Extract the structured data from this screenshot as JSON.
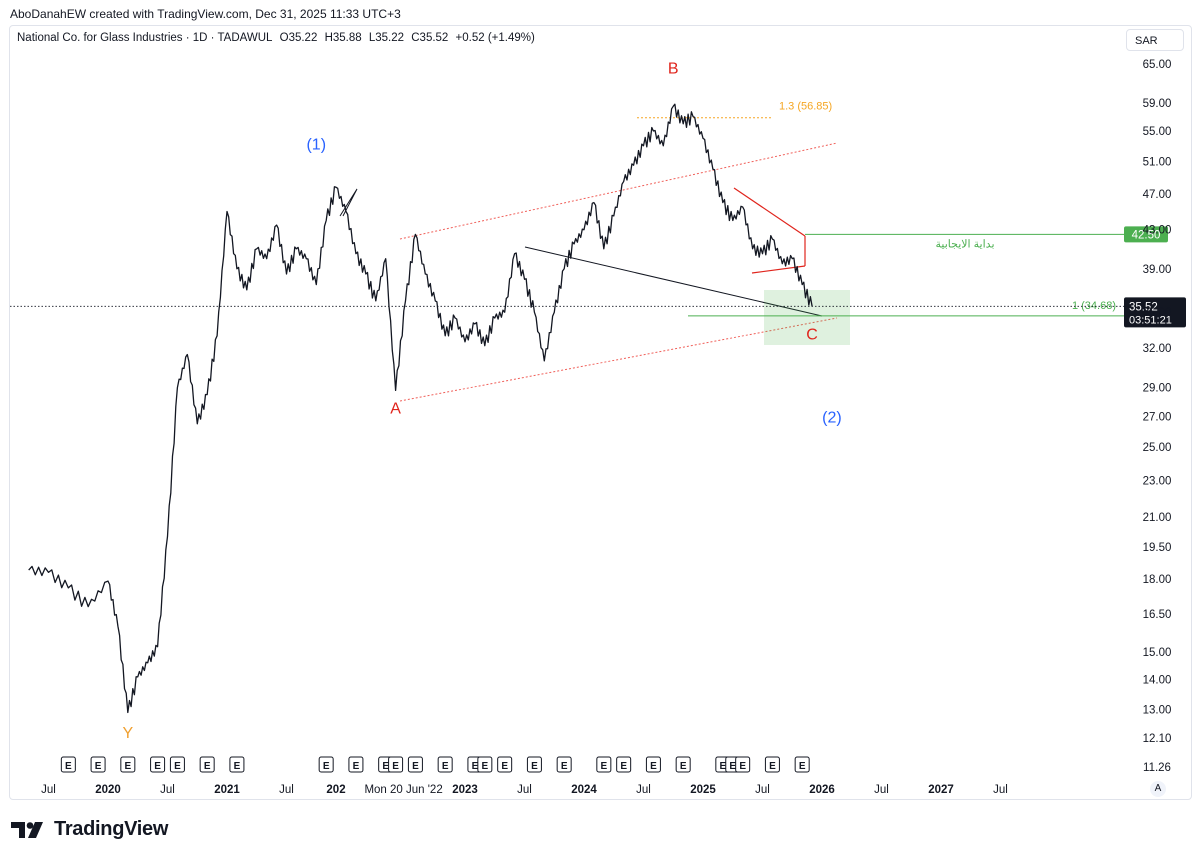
{
  "header": {
    "credit": "AboDanahEW created with TradingView.com, Dec 31, 2025 11:33 UTC+3"
  },
  "legend": {
    "symbol": "National Co. for Glass Industries · 1D · TADAWUL",
    "open": "O35.22",
    "high": "H35.88",
    "low": "L35.22",
    "close": "C35.52",
    "change": "+0.52 (+1.49%)"
  },
  "currency": "SAR",
  "brand": {
    "name": "TradingView"
  },
  "chart_data": {
    "type": "line",
    "scale": "log",
    "ylim": [
      11.0,
      68.0
    ],
    "y_ticks": [
      "65.00",
      "59.00",
      "55.00",
      "51.00",
      "47.00",
      "43.00",
      "39.00",
      "35.00",
      "32.00",
      "29.00",
      "27.00",
      "25.00",
      "23.00",
      "21.00",
      "19.50",
      "18.00",
      "16.50",
      "15.00",
      "14.00",
      "13.00",
      "12.10",
      "11.26"
    ],
    "x_ticks": [
      {
        "label": "Jul",
        "bold": false
      },
      {
        "label": "2020",
        "bold": true
      },
      {
        "label": "Jul",
        "bold": false
      },
      {
        "label": "2021",
        "bold": true
      },
      {
        "label": "Jul",
        "bold": false
      },
      {
        "label": "202",
        "bold": true
      },
      {
        "label": "Mon 20 Jun '22",
        "bold": false
      },
      {
        "label": "2023",
        "bold": true
      },
      {
        "label": "Jul",
        "bold": false
      },
      {
        "label": "2024",
        "bold": true
      },
      {
        "label": "Jul",
        "bold": false
      },
      {
        "label": "2025",
        "bold": true
      },
      {
        "label": "Jul",
        "bold": false
      },
      {
        "label": "2026",
        "bold": true
      },
      {
        "label": "Jul",
        "bold": false
      },
      {
        "label": "2027",
        "bold": true
      },
      {
        "label": "Jul",
        "bold": false
      }
    ],
    "price_path": [
      [
        "2019-05",
        18.4
      ],
      [
        "2019-07",
        18.3
      ],
      [
        "2019-09",
        17.6
      ],
      [
        "2019-11",
        16.8
      ],
      [
        "2020-01",
        17.9
      ],
      [
        "2020-02",
        16.0
      ],
      [
        "2020-03",
        12.9
      ],
      [
        "2020-04",
        14.1
      ],
      [
        "2020-05",
        14.6
      ],
      [
        "2020-06",
        15.2
      ],
      [
        "2020-07",
        20.0
      ],
      [
        "2020-08",
        29.0
      ],
      [
        "2020-09",
        31.5
      ],
      [
        "2020-10",
        26.5
      ],
      [
        "2020-11",
        28.5
      ],
      [
        "2020-12",
        33.0
      ],
      [
        "2021-01",
        45.0
      ],
      [
        "2021-02",
        39.0
      ],
      [
        "2021-03",
        37.0
      ],
      [
        "2021-04",
        41.0
      ],
      [
        "2021-05",
        40.0
      ],
      [
        "2021-06",
        43.5
      ],
      [
        "2021-07",
        38.5
      ],
      [
        "2021-08",
        41.0
      ],
      [
        "2021-09",
        40.0
      ],
      [
        "2021-10",
        37.5
      ],
      [
        "2021-11",
        44.0
      ],
      [
        "2021-12",
        47.8
      ],
      [
        "2022-01",
        45.0
      ],
      [
        "2022-02",
        40.5
      ],
      [
        "2022-03",
        38.5
      ],
      [
        "2022-04",
        36.0
      ],
      [
        "2022-05",
        40.0
      ],
      [
        "2022-06",
        28.8
      ],
      [
        "2022-07",
        36.0
      ],
      [
        "2022-08",
        42.5
      ],
      [
        "2022-09",
        38.5
      ],
      [
        "2022-10",
        36.0
      ],
      [
        "2022-11",
        33.0
      ],
      [
        "2022-12",
        34.5
      ],
      [
        "2023-01",
        32.5
      ],
      [
        "2023-02",
        34.0
      ],
      [
        "2023-03",
        32.2
      ],
      [
        "2023-04",
        34.5
      ],
      [
        "2023-05",
        35.0
      ],
      [
        "2023-06",
        40.5
      ],
      [
        "2023-07",
        38.0
      ],
      [
        "2023-08",
        35.0
      ],
      [
        "2023-09",
        31.0
      ],
      [
        "2023-10",
        35.0
      ],
      [
        "2023-11",
        39.0
      ],
      [
        "2023-12",
        41.5
      ],
      [
        "2024-01",
        43.0
      ],
      [
        "2024-02",
        46.0
      ],
      [
        "2024-03",
        41.0
      ],
      [
        "2024-04",
        44.5
      ],
      [
        "2024-05",
        48.5
      ],
      [
        "2024-06",
        50.5
      ],
      [
        "2024-07",
        53.0
      ],
      [
        "2024-08",
        55.0
      ],
      [
        "2024-09",
        53.0
      ],
      [
        "2024-10",
        58.5
      ],
      [
        "2024-11",
        56.0
      ],
      [
        "2024-12",
        57.0
      ],
      [
        "2025-01",
        54.0
      ],
      [
        "2025-02",
        50.0
      ],
      [
        "2025-03",
        46.0
      ],
      [
        "2025-04",
        44.0
      ],
      [
        "2025-05",
        45.5
      ],
      [
        "2025-06",
        41.0
      ],
      [
        "2025-07",
        40.5
      ],
      [
        "2025-08",
        42.0
      ],
      [
        "2025-09",
        39.5
      ],
      [
        "2025-10",
        40.0
      ],
      [
        "2025-11",
        37.5
      ],
      [
        "2025-12",
        35.52
      ]
    ],
    "wave_labels": [
      {
        "text": "(1)",
        "color": "#2962ff",
        "date": "2021-10",
        "price": 52.5
      },
      {
        "text": "B",
        "color": "#e0241c",
        "date": "2024-10",
        "price": 63.5
      },
      {
        "text": "A",
        "color": "#e0241c",
        "date": "2022-06",
        "price": 27.2
      },
      {
        "text": "C",
        "color": "#e0241c",
        "date": "2025-12",
        "price": 32.7
      },
      {
        "text": "(2)",
        "color": "#2962ff",
        "date": "2026-02",
        "price": 26.6
      },
      {
        "text": "Y",
        "color": "#f0a030",
        "date": "2020-03",
        "price": 12.1
      }
    ],
    "fib_levels": [
      {
        "label": "1.3 (56.85)",
        "value": 56.85,
        "color": "#f5a623"
      },
      {
        "label": "1 (34.68)",
        "value": 34.68,
        "color": "#4caf50"
      }
    ],
    "horizontal_line": {
      "value": 42.5,
      "badge": "42.50",
      "note": "بداية الايجابية",
      "color": "#4caf50"
    },
    "last_price": {
      "value": 35.52,
      "label": "35.52",
      "countdown": "03:51:21"
    },
    "earnings_marker": "E",
    "earnings_dates": [
      "2019-09",
      "2019-12",
      "2020-03",
      "2020-06",
      "2020-08",
      "2020-11",
      "2021-02",
      "2021-11",
      "2022-02",
      "2022-05",
      "2022-06",
      "2022-08",
      "2022-11",
      "2023-02",
      "2023-03",
      "2023-05",
      "2023-08",
      "2023-11",
      "2024-03",
      "2024-05",
      "2024-08",
      "2024-11",
      "2025-03",
      "2025-04",
      "2025-05",
      "2025-08",
      "2025-11"
    ]
  }
}
